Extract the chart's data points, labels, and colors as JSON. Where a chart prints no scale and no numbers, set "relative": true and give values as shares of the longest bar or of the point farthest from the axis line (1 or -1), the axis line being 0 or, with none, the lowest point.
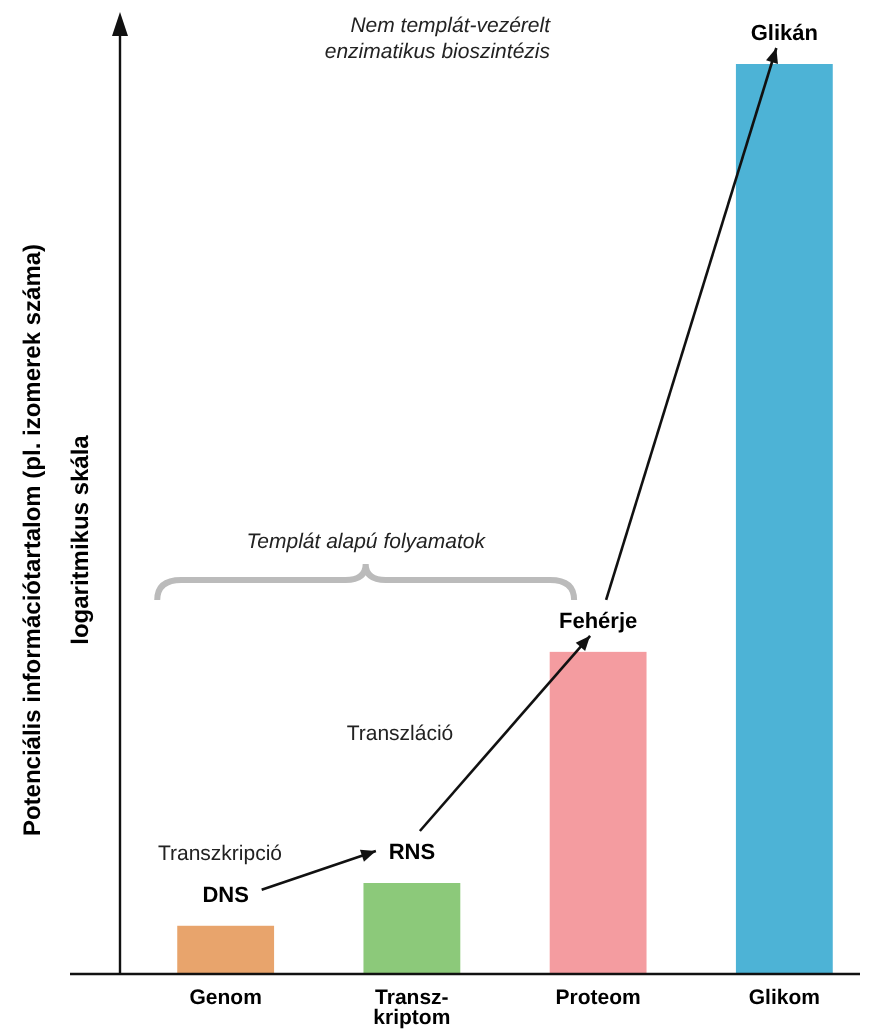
{
  "chart_data": {
    "type": "bar",
    "relative": true,
    "categories": [
      "Genom",
      "Transz-\nkriptom",
      "Proteom",
      "Glikom"
    ],
    "values": [
      0.053,
      0.1,
      0.354,
      1
    ],
    "colors": [
      "#e8a46c",
      "#8cc97a",
      "#f49ca0",
      "#4db3d6"
    ],
    "ylabel": "Potenciális információtartalom (pl. izomerek száma)\nlogaritmikus skála",
    "annotations": [
      {
        "text": "DNS",
        "x": "Genom",
        "y": 0.053
      },
      {
        "text": "RNS",
        "x": "Transz-\nkriptom",
        "y": 0.1
      },
      {
        "text": "Fehérje",
        "x": "Proteom",
        "y": 0.354
      },
      {
        "text": "Glikán",
        "x": "Glikom",
        "y": 1
      },
      "Transzkripció",
      "Transzláció",
      "Nem templát-vezérelt\nenzimatikus bioszintézis",
      "Templát alapú folyamatok"
    ]
  }
}
